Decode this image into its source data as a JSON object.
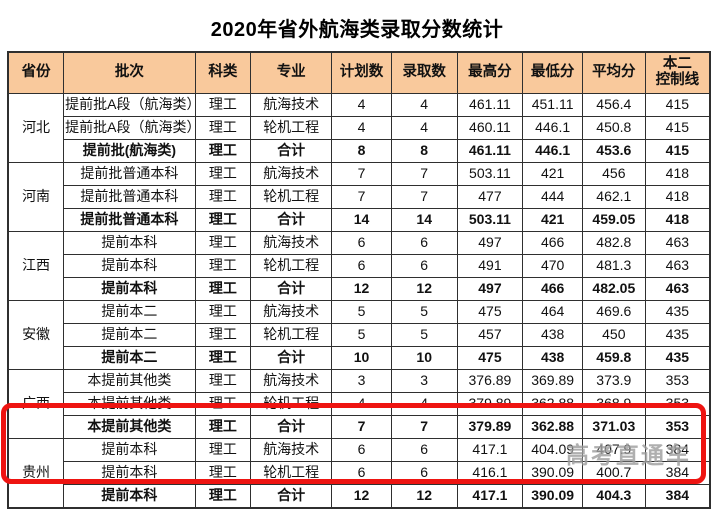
{
  "title": "2020年省外航海类录取分数统计",
  "watermark": "高考直通车",
  "colors": {
    "header_bg": "#F9C99C",
    "highlight_red": "#EE1411",
    "border": "#2F2F2F",
    "watermark_gray": "#7A7A7A"
  },
  "table": {
    "headers": [
      "省份",
      "批次",
      "科类",
      "专业",
      "计划数",
      "录取数",
      "最高分",
      "最低分",
      "平均分"
    ],
    "last_header": [
      "本二",
      "控制线"
    ],
    "groups": [
      {
        "province": "河北",
        "rows": [
          {
            "batch": "提前批A段（航海类）",
            "subject": "理工",
            "major": "航海技术",
            "plan": "4",
            "admitted": "4",
            "max": "461.11",
            "min": "451.11",
            "avg": "456.4",
            "line": "415",
            "bold": false
          },
          {
            "batch": "提前批A段（航海类）",
            "subject": "理工",
            "major": "轮机工程",
            "plan": "4",
            "admitted": "4",
            "max": "460.11",
            "min": "446.1",
            "avg": "450.8",
            "line": "415",
            "bold": false
          },
          {
            "batch": "提前批(航海类)",
            "subject": "理工",
            "major": "合计",
            "plan": "8",
            "admitted": "8",
            "max": "461.11",
            "min": "446.1",
            "avg": "453.6",
            "line": "415",
            "bold": true
          }
        ]
      },
      {
        "province": "河南",
        "rows": [
          {
            "batch": "提前批普通本科",
            "subject": "理工",
            "major": "航海技术",
            "plan": "7",
            "admitted": "7",
            "max": "503.11",
            "min": "421",
            "avg": "456",
            "line": "418",
            "bold": false
          },
          {
            "batch": "提前批普通本科",
            "subject": "理工",
            "major": "轮机工程",
            "plan": "7",
            "admitted": "7",
            "max": "477",
            "min": "444",
            "avg": "462.1",
            "line": "418",
            "bold": false
          },
          {
            "batch": "提前批普通本科",
            "subject": "理工",
            "major": "合计",
            "plan": "14",
            "admitted": "14",
            "max": "503.11",
            "min": "421",
            "avg": "459.05",
            "line": "418",
            "bold": true
          }
        ]
      },
      {
        "province": "江西",
        "rows": [
          {
            "batch": "提前本科",
            "subject": "理工",
            "major": "航海技术",
            "plan": "6",
            "admitted": "6",
            "max": "497",
            "min": "466",
            "avg": "482.8",
            "line": "463",
            "bold": false
          },
          {
            "batch": "提前本科",
            "subject": "理工",
            "major": "轮机工程",
            "plan": "6",
            "admitted": "6",
            "max": "491",
            "min": "470",
            "avg": "481.3",
            "line": "463",
            "bold": false
          },
          {
            "batch": "提前本科",
            "subject": "理工",
            "major": "合计",
            "plan": "12",
            "admitted": "12",
            "max": "497",
            "min": "466",
            "avg": "482.05",
            "line": "463",
            "bold": true
          }
        ]
      },
      {
        "province": "安徽",
        "rows": [
          {
            "batch": "提前本二",
            "subject": "理工",
            "major": "航海技术",
            "plan": "5",
            "admitted": "5",
            "max": "475",
            "min": "464",
            "avg": "469.6",
            "line": "435",
            "bold": false
          },
          {
            "batch": "提前本二",
            "subject": "理工",
            "major": "轮机工程",
            "plan": "5",
            "admitted": "5",
            "max": "457",
            "min": "438",
            "avg": "450",
            "line": "435",
            "bold": false
          },
          {
            "batch": "提前本二",
            "subject": "理工",
            "major": "合计",
            "plan": "10",
            "admitted": "10",
            "max": "475",
            "min": "438",
            "avg": "459.8",
            "line": "435",
            "bold": true
          }
        ]
      },
      {
        "province": "广西",
        "rows": [
          {
            "batch": "本提前其他类",
            "subject": "理工",
            "major": "航海技术",
            "plan": "3",
            "admitted": "3",
            "max": "376.89",
            "min": "369.89",
            "avg": "373.9",
            "line": "353",
            "bold": false
          },
          {
            "batch": "本提前其他类",
            "subject": "理工",
            "major": "轮机工程",
            "plan": "4",
            "admitted": "4",
            "max": "379.89",
            "min": "362.88",
            "avg": "368.9",
            "line": "353",
            "bold": false
          },
          {
            "batch": "本提前其他类",
            "subject": "理工",
            "major": "合计",
            "plan": "7",
            "admitted": "7",
            "max": "379.89",
            "min": "362.88",
            "avg": "371.03",
            "line": "353",
            "bold": true
          }
        ]
      },
      {
        "province": "贵州",
        "rows": [
          {
            "batch": "提前本科",
            "subject": "理工",
            "major": "航海技术",
            "plan": "6",
            "admitted": "6",
            "max": "417.1",
            "min": "404.09",
            "avg": "407.9",
            "line": "384",
            "bold": false
          },
          {
            "batch": "提前本科",
            "subject": "理工",
            "major": "轮机工程",
            "plan": "6",
            "admitted": "6",
            "max": "416.1",
            "min": "390.09",
            "avg": "400.7",
            "line": "384",
            "bold": false
          },
          {
            "batch": "提前本科",
            "subject": "理工",
            "major": "合计",
            "plan": "12",
            "admitted": "12",
            "max": "417.1",
            "min": "390.09",
            "avg": "404.3",
            "line": "384",
            "bold": true
          }
        ]
      }
    ]
  }
}
